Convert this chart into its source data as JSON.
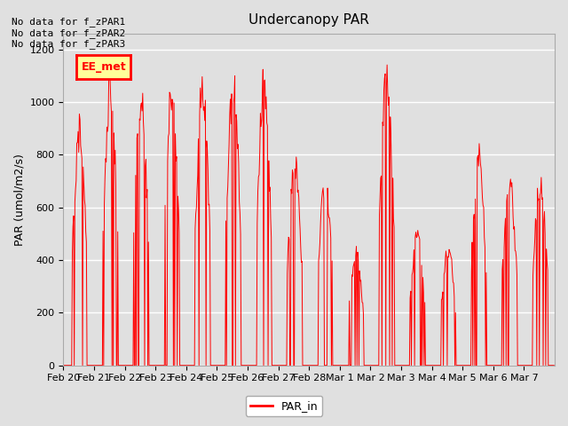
{
  "title": "Undercanopy PAR",
  "ylabel": "PAR (umol/m2/s)",
  "ylim": [
    0,
    1260
  ],
  "yticks": [
    0,
    200,
    400,
    600,
    800,
    1000,
    1200
  ],
  "background_color": "#e0e0e0",
  "line_color": "#ff0000",
  "legend_label": "PAR_in",
  "annotations": [
    "No data for f_zPAR1",
    "No data for f_zPAR2",
    "No data for f_zPAR3"
  ],
  "watermark_text": "EE_met",
  "watermark_bg": "#ffff99",
  "watermark_border": "#ff0000",
  "xtick_labels": [
    "Feb 20",
    "Feb 21",
    "Feb 22",
    "Feb 23",
    "Feb 24",
    "Feb 25",
    "Feb 26",
    "Feb 27",
    "Feb 28",
    "Mar 1",
    "Mar 2",
    "Mar 3",
    "Mar 4",
    "Mar 5",
    "Mar 6",
    "Mar 7"
  ],
  "days": 16,
  "points_per_day": 48,
  "day_peaks": [
    960,
    1130,
    1100,
    1130,
    1140,
    1150,
    1140,
    830,
    760,
    460,
    1170,
    530,
    480,
    850,
    760,
    760
  ]
}
